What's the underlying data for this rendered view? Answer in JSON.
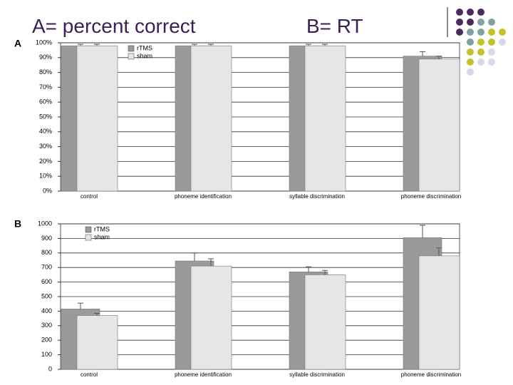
{
  "chart_data": [
    {
      "type": "bar",
      "title": "A= percent correct",
      "panel_label": "A",
      "categories": [
        "control",
        "phoneme identification",
        "syllable discrimination",
        "phoneme discrimination"
      ],
      "series": [
        {
          "name": "rTMS",
          "color": "#9a9a9a",
          "values": [
            98,
            98,
            98,
            91
          ],
          "errors": [
            1,
            1,
            1,
            3
          ]
        },
        {
          "name": "sham",
          "color": "#e6e6e6",
          "values": [
            98,
            98,
            98,
            89
          ],
          "errors": [
            1,
            1,
            1,
            2
          ]
        }
      ],
      "ylim": [
        0,
        100
      ],
      "yticks": [
        {
          "value": 0,
          "label": "0%"
        },
        {
          "value": 10,
          "label": "10%"
        },
        {
          "value": 20,
          "label": "20%"
        },
        {
          "value": 30,
          "label": "30%"
        },
        {
          "value": 40,
          "label": "40%"
        },
        {
          "value": 50,
          "label": "50%"
        },
        {
          "value": 60,
          "label": "60%"
        },
        {
          "value": 70,
          "label": "70%"
        },
        {
          "value": 80,
          "label": "80%"
        },
        {
          "value": 90,
          "label": "90%"
        },
        {
          "value": 100,
          "label": "100%"
        }
      ],
      "grid": true
    },
    {
      "type": "bar",
      "title": "B= RT",
      "panel_label": "B",
      "categories": [
        "control",
        "phoneme identification",
        "syllable discrimination",
        "phoneme discrimination"
      ],
      "series": [
        {
          "name": "rTMS",
          "color": "#9a9a9a",
          "values": [
            415,
            745,
            670,
            905
          ],
          "errors": [
            40,
            55,
            35,
            85
          ]
        },
        {
          "name": "sham",
          "color": "#e6e6e6",
          "values": [
            370,
            710,
            650,
            780
          ],
          "errors": [
            15,
            50,
            30,
            55
          ]
        }
      ],
      "ylim": [
        0,
        1000
      ],
      "yticks": [
        0,
        100,
        200,
        300,
        400,
        500,
        600,
        700,
        800,
        900,
        1000
      ],
      "grid": true
    }
  ]
}
